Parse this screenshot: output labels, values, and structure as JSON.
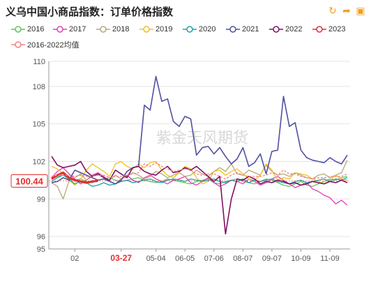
{
  "header": {
    "title": "义乌中国小商品指数：订单价格指数",
    "tools": [
      {
        "name": "refresh-icon",
        "glyph": "↻"
      },
      {
        "name": "share-icon",
        "glyph": "➦"
      },
      {
        "name": "save-image-icon",
        "glyph": "▣"
      }
    ]
  },
  "watermark": "紫金天风期货",
  "chart_data": {
    "type": "line",
    "title": "义乌中国小商品指数：订单价格指数",
    "xlabel": "",
    "ylabel": "",
    "ylim": [
      95,
      110
    ],
    "y_ticks": [
      95,
      96,
      99,
      102,
      105,
      108,
      110
    ],
    "x_count": 52,
    "x_tick_labels": [
      {
        "i": 4,
        "label": "02"
      },
      {
        "i": 12,
        "label": "03-27",
        "highlight": true
      },
      {
        "i": 18,
        "label": "05-04"
      },
      {
        "i": 23,
        "label": "06-05"
      },
      {
        "i": 28,
        "label": "07-06"
      },
      {
        "i": 33,
        "label": "08-07"
      },
      {
        "i": 38,
        "label": "09-07"
      },
      {
        "i": 43,
        "label": "10-09"
      },
      {
        "i": 48,
        "label": "11-09"
      }
    ],
    "current_value": {
      "label": "100.44",
      "value": 100.44
    },
    "grid": true,
    "legend_position": "top",
    "series": [
      {
        "name": "2016",
        "color": "#5ac85a",
        "values": [
          100.6,
          100.8,
          100.9,
          100.7,
          100.5,
          100.6,
          100.4,
          100.3,
          100.5,
          100.6,
          100.7,
          100.5,
          100.4,
          100.5,
          100.6,
          100.7,
          100.5,
          100.4,
          100.3,
          100.4,
          100.6,
          100.5,
          100.4,
          100.3,
          100.2,
          100.4,
          100.5,
          100.6,
          100.3,
          100.2,
          100.4,
          100.5,
          100.6,
          100.4,
          100.3,
          100.2,
          100.4,
          100.6,
          100.5,
          100.3,
          100.1,
          100.0,
          100.2,
          100.4,
          100.1,
          100.0,
          100.2,
          100.4,
          100.6,
          100.5,
          100.7,
          100.8
        ]
      },
      {
        "name": "2017",
        "color": "#e040b8",
        "values": [
          100.7,
          101.2,
          101.5,
          101.0,
          100.6,
          100.2,
          100.5,
          100.9,
          101.1,
          100.8,
          100.4,
          100.2,
          100.6,
          100.9,
          100.5,
          100.3,
          100.7,
          100.9,
          100.6,
          100.4,
          100.2,
          100.5,
          100.6,
          100.8,
          100.3,
          100.1,
          100.4,
          100.7,
          100.3,
          100.0,
          100.2,
          100.5,
          100.4,
          100.2,
          100.6,
          100.4,
          100.1,
          100.3,
          100.6,
          100.8,
          100.5,
          100.2,
          99.9,
          100.1,
          100.3,
          99.8,
          99.6,
          99.3,
          99.1,
          98.6,
          98.9,
          98.5
        ]
      },
      {
        "name": "2018",
        "color": "#b8a878",
        "values": [
          100.3,
          100.0,
          99.0,
          100.4,
          100.7,
          101.0,
          100.5,
          100.8,
          101.0,
          100.7,
          100.5,
          100.9,
          100.6,
          100.8,
          101.1,
          100.9,
          100.6,
          100.8,
          101.2,
          101.0,
          100.7,
          100.9,
          101.1,
          100.8,
          100.9,
          101.3,
          101.0,
          100.8,
          101.2,
          101.5,
          101.2,
          101.8,
          101.0,
          100.9,
          101.3,
          101.1,
          100.9,
          101.7,
          101.2,
          100.9,
          101.0,
          100.8,
          101.1,
          100.9,
          100.7,
          100.6,
          100.9,
          101.0,
          100.7,
          100.9,
          101.1,
          102.1
        ]
      },
      {
        "name": "2019",
        "color": "#f0c020",
        "values": [
          101.6,
          101.4,
          101.0,
          100.5,
          100.1,
          100.6,
          101.3,
          101.8,
          101.5,
          101.2,
          100.8,
          101.8,
          102.0,
          101.6,
          101.4,
          101.8,
          101.5,
          101.9,
          102.0,
          101.3,
          100.9,
          100.7,
          101.1,
          101.6,
          101.4,
          100.7,
          100.2,
          100.4,
          101.2,
          101.3,
          100.9,
          101.2,
          101.4,
          101.0,
          100.6,
          100.5,
          100.9,
          101.8,
          101.3,
          100.5,
          100.7,
          100.6,
          101.1,
          101.0,
          100.9,
          100.6,
          100.4,
          100.2,
          100.5,
          100.9,
          100.6,
          100.5
        ]
      },
      {
        "name": "2020",
        "color": "#20a0a8",
        "values": [
          100.4,
          100.7,
          100.9,
          100.6,
          100.2,
          100.4,
          100.3,
          100.0,
          100.1,
          100.3,
          100.1,
          100.2,
          100.4,
          100.5,
          100.3,
          100.4,
          100.5,
          100.6,
          100.4,
          100.3,
          100.5,
          100.6,
          100.5,
          100.4,
          100.6,
          100.5,
          100.4,
          100.5,
          100.6,
          100.4,
          100.3,
          100.5,
          100.4,
          100.6,
          100.3,
          100.5,
          100.4,
          100.5,
          100.6,
          100.4,
          100.3,
          100.2,
          100.4,
          100.5,
          100.3,
          100.4,
          100.5,
          100.6,
          100.4,
          100.6,
          100.5,
          100.7
        ]
      },
      {
        "name": "2021",
        "color": "#5050a0",
        "values": [
          100.3,
          100.4,
          100.7,
          100.5,
          101.3,
          101.1,
          100.9,
          100.7,
          100.5,
          100.6,
          100.4,
          100.2,
          100.5,
          101.2,
          101.5,
          101.6,
          106.5,
          106.1,
          108.8,
          106.8,
          107.0,
          105.2,
          104.8,
          105.6,
          105.4,
          102.5,
          103.1,
          103.2,
          102.6,
          103.1,
          102.4,
          101.8,
          102.2,
          103.1,
          101.6,
          101.9,
          102.6,
          101.0,
          102.8,
          102.9,
          107.2,
          104.8,
          105.1,
          102.9,
          102.3,
          102.1,
          102.0,
          101.9,
          102.3,
          102.0,
          101.8,
          102.5
        ]
      },
      {
        "name": "2022",
        "color": "#801060",
        "values": [
          102.4,
          101.7,
          101.5,
          101.6,
          101.7,
          102.0,
          101.2,
          100.8,
          101.0,
          100.7,
          100.5,
          101.3,
          101.0,
          100.7,
          101.5,
          101.6,
          101.2,
          101.0,
          100.9,
          101.3,
          101.6,
          101.1,
          101.2,
          101.5,
          101.3,
          101.6,
          101.2,
          100.8,
          100.4,
          100.8,
          96.2,
          99.0,
          100.6,
          100.5,
          100.8,
          100.6,
          100.2,
          100.4,
          100.3,
          100.5,
          100.4,
          100.2,
          100.3,
          100.1,
          100.2,
          100.4,
          100.3,
          100.2,
          100.4,
          100.3,
          100.5,
          100.3
        ]
      },
      {
        "name": "2023",
        "color": "#e03030",
        "values": [
          100.6,
          100.9,
          101.1,
          100.7,
          100.5,
          100.4,
          100.3,
          100.4,
          100.44
        ]
      },
      {
        "name": "2016-2022均值",
        "color": "#f08080",
        "dashed": true,
        "values": [
          100.8,
          100.9,
          100.9,
          100.9,
          100.8,
          100.9,
          100.8,
          100.8,
          100.9,
          100.9,
          100.7,
          100.8,
          100.8,
          100.9,
          101.0,
          101.1,
          101.8,
          101.6,
          101.9,
          101.6,
          101.4,
          101.2,
          101.3,
          101.4,
          101.3,
          101.0,
          100.9,
          101.0,
          101.0,
          100.8,
          100.6,
          100.9,
          101.1,
          100.9,
          100.8,
          100.8,
          100.8,
          100.9,
          101.1,
          100.9,
          101.3,
          101.0,
          101.0,
          100.8,
          100.7,
          100.6,
          100.7,
          100.7,
          100.8,
          100.8,
          100.8,
          101.0
        ]
      }
    ]
  }
}
